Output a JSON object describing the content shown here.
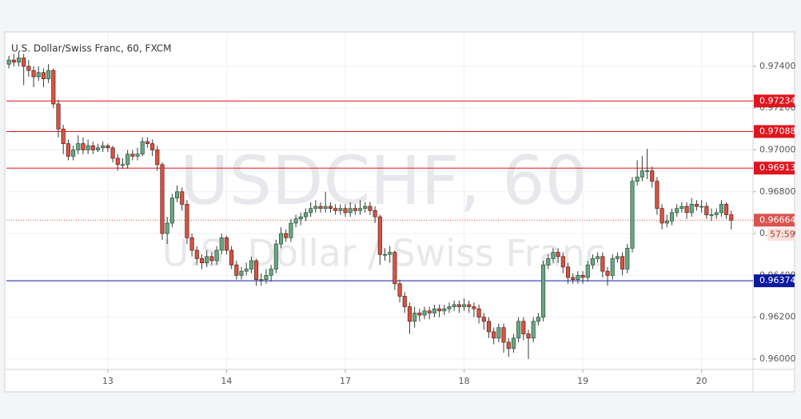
{
  "chart_data": {
    "type": "candlestick",
    "title": "U.S. Dollar/Swiss Franc, 60, FXCM",
    "watermark": "USDCHF, 60",
    "watermark_subtitle": "U.S. Dollar / Swiss Franc",
    "up_color": "#6ba583",
    "down_color": "#d75442",
    "grid": true,
    "xlim": [
      -20.5,
      130.4
    ],
    "xticks": [
      {
        "value": 0,
        "label": "13"
      },
      {
        "value": 24,
        "label": "14"
      },
      {
        "value": 48,
        "label": "17"
      },
      {
        "value": 72,
        "label": "18"
      },
      {
        "value": 96,
        "label": "19"
      },
      {
        "value": 120,
        "label": "20"
      }
    ],
    "ylim": [
      0.9595,
      0.97545
    ],
    "yticks": [
      {
        "value": 0.96,
        "label": "0.96000"
      },
      {
        "value": 0.962,
        "label": "0.96200"
      },
      {
        "value": 0.964,
        "label": "0.96400"
      },
      {
        "value": 0.966,
        "label": "0.96600"
      },
      {
        "value": 0.968,
        "label": "0.96800"
      },
      {
        "value": 0.97,
        "label": "0.97000"
      },
      {
        "value": 0.972,
        "label": "0.97200"
      },
      {
        "value": 0.974,
        "label": "0.97400"
      }
    ],
    "levels": [
      {
        "value": 0.97234,
        "color": "#e0141e"
      },
      {
        "value": 0.97088,
        "color": "#e0141e"
      },
      {
        "value": 0.96913,
        "color": "#e0141e"
      },
      {
        "value": 0.96374,
        "color": "#0c1aa0"
      }
    ],
    "last_price": {
      "value": 0.96664,
      "countdown": "57:59",
      "color": "#d9534f"
    },
    "x": [
      -20,
      -19,
      -18,
      -17,
      -16,
      -15,
      -14,
      -13,
      -12,
      -11,
      -10,
      -9,
      -8,
      -7,
      -6,
      -5,
      -4,
      -3,
      -2,
      -1,
      0,
      1,
      2,
      3,
      4,
      5,
      6,
      7,
      8,
      9,
      10,
      11,
      12,
      13,
      14,
      15,
      16,
      17,
      18,
      19,
      20,
      21,
      22,
      23,
      24,
      25,
      26,
      27,
      28,
      29,
      30,
      31,
      32,
      33,
      34,
      35,
      36,
      37,
      38,
      39,
      40,
      41,
      42,
      43,
      44,
      45,
      46,
      47,
      48,
      49,
      50,
      51,
      52,
      53,
      54,
      55,
      56,
      57,
      58,
      59,
      60,
      61,
      62,
      63,
      64,
      65,
      66,
      67,
      68,
      69,
      70,
      71,
      72,
      73,
      74,
      75,
      76,
      77,
      78,
      79,
      80,
      81,
      82,
      83,
      84,
      85,
      86,
      87,
      88,
      89,
      90,
      91,
      92,
      93,
      94,
      95,
      96,
      97,
      98,
      99,
      100,
      101,
      102,
      103,
      104,
      105,
      106,
      107,
      108,
      109,
      110,
      111,
      112,
      113,
      114,
      115,
      116,
      117,
      118,
      119,
      120,
      121,
      122,
      123,
      124,
      125,
      126
    ],
    "open": [
      0.9741,
      0.9743,
      0.9742,
      0.9744,
      0.974,
      0.9738,
      0.9735,
      0.9737,
      0.9734,
      0.9738,
      0.9722,
      0.971,
      0.9703,
      0.9697,
      0.97,
      0.9703,
      0.97,
      0.9702,
      0.97,
      0.9701,
      0.9702,
      0.9701,
      0.9696,
      0.9693,
      0.9693,
      0.9698,
      0.9697,
      0.9698,
      0.9704,
      0.9703,
      0.97,
      0.9693,
      0.966,
      0.9665,
      0.9677,
      0.968,
      0.9674,
      0.9658,
      0.9652,
      0.9648,
      0.9646,
      0.9649,
      0.9647,
      0.9652,
      0.9658,
      0.9652,
      0.9645,
      0.964,
      0.9642,
      0.9643,
      0.9647,
      0.9638,
      0.9638,
      0.964,
      0.9643,
      0.9655,
      0.966,
      0.9658,
      0.9665,
      0.9667,
      0.9668,
      0.967,
      0.9672,
      0.9673,
      0.9672,
      0.9673,
      0.9672,
      0.9671,
      0.9672,
      0.967,
      0.9672,
      0.9671,
      0.9672,
      0.9673,
      0.9671,
      0.9668,
      0.965,
      0.965,
      0.9651,
      0.9636,
      0.963,
      0.9625,
      0.9618,
      0.9622,
      0.9621,
      0.9623,
      0.9622,
      0.9624,
      0.9623,
      0.9624,
      0.9625,
      0.9626,
      0.9625,
      0.9626,
      0.9625,
      0.9624,
      0.962,
      0.9618,
      0.9613,
      0.961,
      0.9615,
      0.9608,
      0.9605,
      0.961,
      0.9618,
      0.9612,
      0.961,
      0.9618,
      0.962,
      0.9645,
      0.9648,
      0.9651,
      0.9649,
      0.9644,
      0.9639,
      0.9638,
      0.964,
      0.9639,
      0.9645,
      0.9648,
      0.9649,
      0.9642,
      0.964,
      0.9648,
      0.9649,
      0.9643,
      0.9653,
      0.9685,
      0.9687,
      0.969,
      0.969,
      0.9685,
      0.9672,
      0.9665,
      0.9666,
      0.967,
      0.9672,
      0.9673,
      0.967,
      0.9674,
      0.9673,
      0.9673,
      0.9669,
      0.9669,
      0.967,
      0.9674,
      0.9669
    ],
    "high": [
      0.9745,
      0.9746,
      0.9747,
      0.9746,
      0.9743,
      0.974,
      0.974,
      0.9739,
      0.9741,
      0.9739,
      0.9724,
      0.9712,
      0.9705,
      0.9702,
      0.9707,
      0.9706,
      0.9705,
      0.9704,
      0.9703,
      0.9704,
      0.9703,
      0.9702,
      0.9698,
      0.9696,
      0.97,
      0.97,
      0.9701,
      0.9706,
      0.9706,
      0.9705,
      0.9702,
      0.9694,
      0.9668,
      0.9679,
      0.9683,
      0.9682,
      0.9676,
      0.966,
      0.9654,
      0.965,
      0.9652,
      0.9651,
      0.9654,
      0.966,
      0.9659,
      0.9654,
      0.9647,
      0.9644,
      0.9646,
      0.9649,
      0.9648,
      0.9641,
      0.9643,
      0.9645,
      0.9657,
      0.9663,
      0.9662,
      0.9667,
      0.9669,
      0.967,
      0.9672,
      0.9675,
      0.9676,
      0.9675,
      0.968,
      0.9675,
      0.9674,
      0.9674,
      0.9674,
      0.9675,
      0.9674,
      0.9676,
      0.9675,
      0.9675,
      0.9673,
      0.9669,
      0.9653,
      0.9654,
      0.9652,
      0.9638,
      0.9632,
      0.9627,
      0.9625,
      0.9624,
      0.9625,
      0.9625,
      0.9626,
      0.9626,
      0.9626,
      0.9627,
      0.9628,
      0.9628,
      0.9629,
      0.9628,
      0.9627,
      0.9626,
      0.9622,
      0.962,
      0.9615,
      0.9617,
      0.9617,
      0.961,
      0.9612,
      0.962,
      0.962,
      0.9614,
      0.962,
      0.9622,
      0.9647,
      0.965,
      0.9653,
      0.9653,
      0.9651,
      0.9646,
      0.9641,
      0.9642,
      0.9642,
      0.9647,
      0.965,
      0.9651,
      0.9651,
      0.9644,
      0.965,
      0.9651,
      0.9651,
      0.9655,
      0.9687,
      0.9695,
      0.9697,
      0.97005,
      0.9692,
      0.9687,
      0.9674,
      0.9669,
      0.9672,
      0.9674,
      0.9675,
      0.9675,
      0.9677,
      0.9676,
      0.9676,
      0.9675,
      0.9672,
      0.9672,
      0.9676,
      0.9675,
      0.9671
    ],
    "low": [
      0.9739,
      0.974,
      0.974,
      0.9731,
      0.9735,
      0.973,
      0.9733,
      0.973,
      0.9732,
      0.972,
      0.9706,
      0.9698,
      0.9695,
      0.9695,
      0.9698,
      0.9698,
      0.9698,
      0.9698,
      0.9699,
      0.9699,
      0.9699,
      0.9694,
      0.969,
      0.9691,
      0.9691,
      0.9695,
      0.9695,
      0.9697,
      0.9701,
      0.9697,
      0.969,
      0.9657,
      0.9655,
      0.9663,
      0.9675,
      0.9671,
      0.9655,
      0.9649,
      0.9645,
      0.9643,
      0.9644,
      0.9645,
      0.9645,
      0.965,
      0.965,
      0.9643,
      0.9638,
      0.9638,
      0.964,
      0.9641,
      0.9635,
      0.9635,
      0.9636,
      0.9637,
      0.9641,
      0.9653,
      0.9656,
      0.9656,
      0.9663,
      0.9664,
      0.9666,
      0.9668,
      0.967,
      0.967,
      0.967,
      0.967,
      0.9669,
      0.9669,
      0.9668,
      0.9668,
      0.9669,
      0.9669,
      0.967,
      0.9669,
      0.9665,
      0.9645,
      0.9647,
      0.9646,
      0.9633,
      0.9627,
      0.9622,
      0.9612,
      0.9615,
      0.9618,
      0.9619,
      0.9619,
      0.962,
      0.962,
      0.9621,
      0.9622,
      0.9623,
      0.9622,
      0.9623,
      0.9622,
      0.962,
      0.9617,
      0.9614,
      0.961,
      0.9607,
      0.9608,
      0.9603,
      0.9601,
      0.9603,
      0.9608,
      0.9609,
      0.96,
      0.9608,
      0.9616,
      0.9618,
      0.9643,
      0.9646,
      0.9646,
      0.9641,
      0.9636,
      0.9636,
      0.9636,
      0.9636,
      0.9637,
      0.9643,
      0.9646,
      0.9639,
      0.9635,
      0.9638,
      0.9646,
      0.964,
      0.9641,
      0.9651,
      0.9683,
      0.9685,
      0.9686,
      0.9682,
      0.9669,
      0.9662,
      0.9663,
      0.9664,
      0.9668,
      0.967,
      0.9667,
      0.9668,
      0.9671,
      0.967,
      0.9667,
      0.9666,
      0.9667,
      0.9668,
      0.9667,
      0.9662
    ],
    "close": [
      0.9743,
      0.9742,
      0.9744,
      0.974,
      0.9738,
      0.9735,
      0.9737,
      0.9734,
      0.9738,
      0.9722,
      0.971,
      0.9703,
      0.9697,
      0.97,
      0.9703,
      0.97,
      0.9702,
      0.97,
      0.9701,
      0.9702,
      0.9701,
      0.9696,
      0.9693,
      0.9693,
      0.9698,
      0.9697,
      0.9698,
      0.9704,
      0.9703,
      0.97,
      0.9693,
      0.966,
      0.9665,
      0.9677,
      0.968,
      0.9674,
      0.9658,
      0.9652,
      0.9648,
      0.9646,
      0.9649,
      0.9647,
      0.9652,
      0.9658,
      0.9652,
      0.9645,
      0.964,
      0.9642,
      0.9643,
      0.9647,
      0.9638,
      0.9638,
      0.964,
      0.9643,
      0.9655,
      0.966,
      0.9658,
      0.9665,
      0.9667,
      0.9668,
      0.967,
      0.9672,
      0.9673,
      0.9672,
      0.9673,
      0.9672,
      0.9671,
      0.9672,
      0.967,
      0.9672,
      0.9671,
      0.9672,
      0.9673,
      0.9671,
      0.9668,
      0.965,
      0.965,
      0.9651,
      0.9636,
      0.963,
      0.9625,
      0.9618,
      0.9622,
      0.9621,
      0.9623,
      0.9622,
      0.9624,
      0.9623,
      0.9624,
      0.9625,
      0.9626,
      0.9625,
      0.9626,
      0.9625,
      0.9624,
      0.962,
      0.9618,
      0.9613,
      0.961,
      0.9615,
      0.9608,
      0.9605,
      0.961,
      0.9618,
      0.9612,
      0.961,
      0.9618,
      0.962,
      0.9645,
      0.9648,
      0.9651,
      0.9649,
      0.9644,
      0.9639,
      0.9638,
      0.964,
      0.9639,
      0.9645,
      0.9648,
      0.9649,
      0.9642,
      0.964,
      0.9648,
      0.9649,
      0.9643,
      0.9653,
      0.9685,
      0.9687,
      0.969,
      0.969,
      0.9685,
      0.9672,
      0.9665,
      0.9666,
      0.967,
      0.9672,
      0.9673,
      0.967,
      0.9674,
      0.9673,
      0.9673,
      0.9669,
      0.9669,
      0.967,
      0.9674,
      0.9669,
      0.96664
    ]
  }
}
